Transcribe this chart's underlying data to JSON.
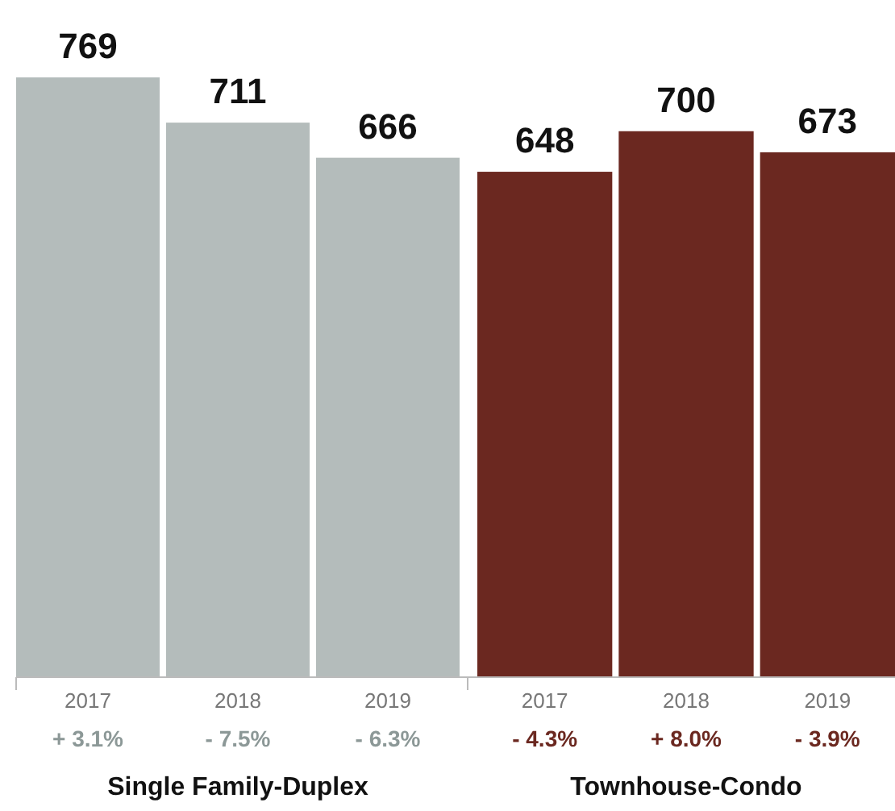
{
  "chart_data": {
    "type": "bar",
    "categories": [
      "2017",
      "2018",
      "2019",
      "2017",
      "2018",
      "2019"
    ],
    "values": [
      769,
      711,
      666,
      648,
      700,
      673
    ],
    "colors": [
      "#b4bcbb",
      "#b4bcbb",
      "#b4bcbb",
      "#6b2820",
      "#6b2820",
      "#6b2820"
    ],
    "data_labels": true,
    "annotations": [
      "+ 3.1%",
      "- 7.5%",
      "- 6.3%",
      "- 4.3%",
      "+ 8.0%",
      "- 3.9%",
      "Single Family-Duplex",
      "Townhouse-Condo"
    ]
  }
}
